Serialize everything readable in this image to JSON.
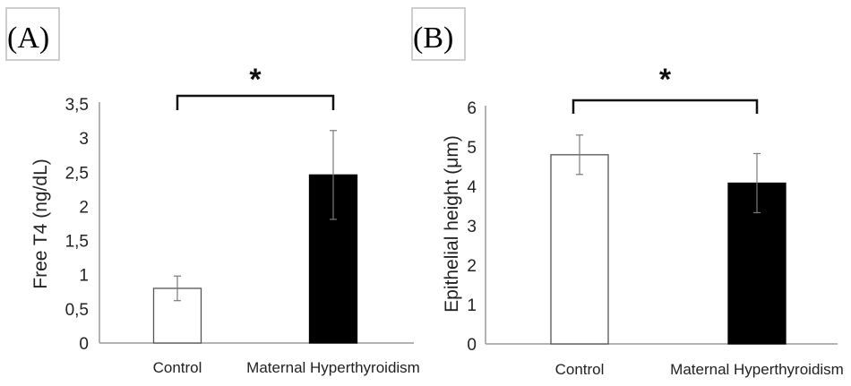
{
  "chart_data": [
    {
      "panel": "(A)",
      "type": "bar",
      "title": "",
      "xlabel": "",
      "ylabel": "Free T4  (ng/dL)",
      "ylim": [
        0,
        3.5
      ],
      "yticks": [
        "0",
        "0,5",
        "1",
        "1,5",
        "2",
        "2,5",
        "3",
        "3,5"
      ],
      "categories": [
        "Control",
        "Maternal Hyperthyroidism"
      ],
      "values": [
        0.8,
        2.46
      ],
      "errors": [
        0.18,
        0.65
      ],
      "bar_colors": [
        "#ffffff",
        "#000000"
      ],
      "significance": "*"
    },
    {
      "panel": "(B)",
      "type": "bar",
      "title": "",
      "xlabel": "",
      "ylabel": "Epithelial height (μm)",
      "ylim": [
        0,
        6
      ],
      "yticks": [
        "0",
        "1",
        "2",
        "3",
        "4",
        "5",
        "6"
      ],
      "categories": [
        "Control",
        "Maternal Hyperthyroidism"
      ],
      "values": [
        4.8,
        4.08
      ],
      "errors": [
        0.5,
        0.75
      ],
      "bar_colors": [
        "#ffffff",
        "#000000"
      ],
      "significance": "*"
    }
  ]
}
